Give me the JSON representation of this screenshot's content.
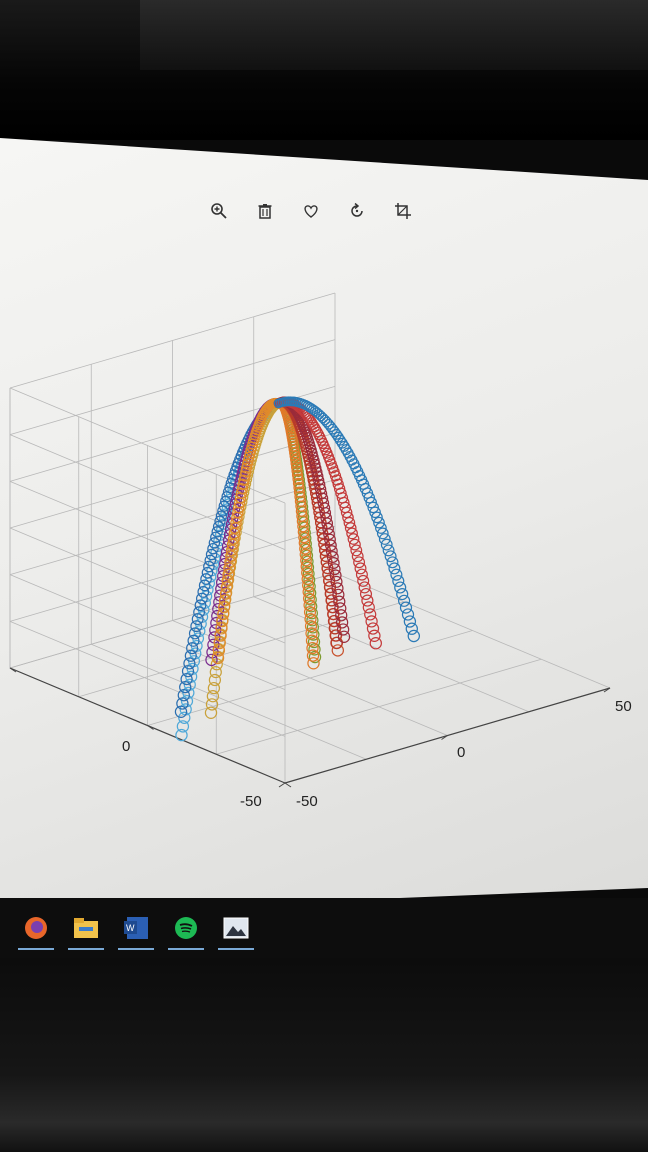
{
  "toolbar": {
    "items": [
      {
        "name": "zoom-in",
        "icon": "magnifier-plus-icon"
      },
      {
        "name": "delete",
        "icon": "trash-icon"
      },
      {
        "name": "favorite",
        "icon": "heart-icon"
      },
      {
        "name": "rotate",
        "icon": "rotate-icon"
      },
      {
        "name": "crop",
        "icon": "crop-icon"
      }
    ]
  },
  "taskbar": {
    "apps": [
      {
        "name": "firefox",
        "color": "#e8662a"
      },
      {
        "name": "file-explorer",
        "color": "#f1c24b"
      },
      {
        "name": "word",
        "color": "#2b5fb4"
      },
      {
        "name": "spotify",
        "color": "#1db954"
      },
      {
        "name": "photos",
        "color": "#dfe6ee"
      }
    ]
  },
  "chart_data": {
    "type": "scatter",
    "projection": "3d",
    "marker": "open-circle",
    "x_ticks": [
      "-50",
      "0",
      "50"
    ],
    "y_ticks": [
      "-50",
      "0"
    ],
    "xlim": [
      -50,
      50
    ],
    "ylim": [
      -50,
      50
    ],
    "grid": true,
    "series": [
      {
        "color": "#4fa8d8",
        "x": -8,
        "y": 2,
        "dx": -40,
        "dy": -12
      },
      {
        "color": "#2b6fb0",
        "x": -8,
        "y": 2,
        "dx": -30,
        "dy": 0
      },
      {
        "color": "#c9a13a",
        "x": -8,
        "y": 2,
        "dx": -25,
        "dy": -5
      },
      {
        "color": "#7a2d8e",
        "x": -8,
        "y": 2,
        "dx": -2,
        "dy": 22
      },
      {
        "color": "#e08a2a",
        "x": -8,
        "y": 2,
        "dx": 0,
        "dy": 22
      },
      {
        "color": "#7c9a2e",
        "x": -8,
        "y": 2,
        "dx": 18,
        "dy": 8
      },
      {
        "color": "#e07a2a",
        "x": -8,
        "y": 2,
        "dx": 15,
        "dy": 5
      },
      {
        "color": "#c8522d",
        "x": -8,
        "y": 2,
        "dx": 25,
        "dy": 8
      },
      {
        "color": "#b83a2a",
        "x": -8,
        "y": 2,
        "dx": 28,
        "dy": 12
      },
      {
        "color": "#9a2b3a",
        "x": -8,
        "y": 2,
        "dx": 32,
        "dy": 14
      },
      {
        "color": "#c43a3a",
        "x": -8,
        "y": 2,
        "dx": 35,
        "dy": 6
      },
      {
        "color": "#2b7ab6",
        "x": -8,
        "y": 2,
        "dx": 45,
        "dy": 4
      }
    ]
  }
}
